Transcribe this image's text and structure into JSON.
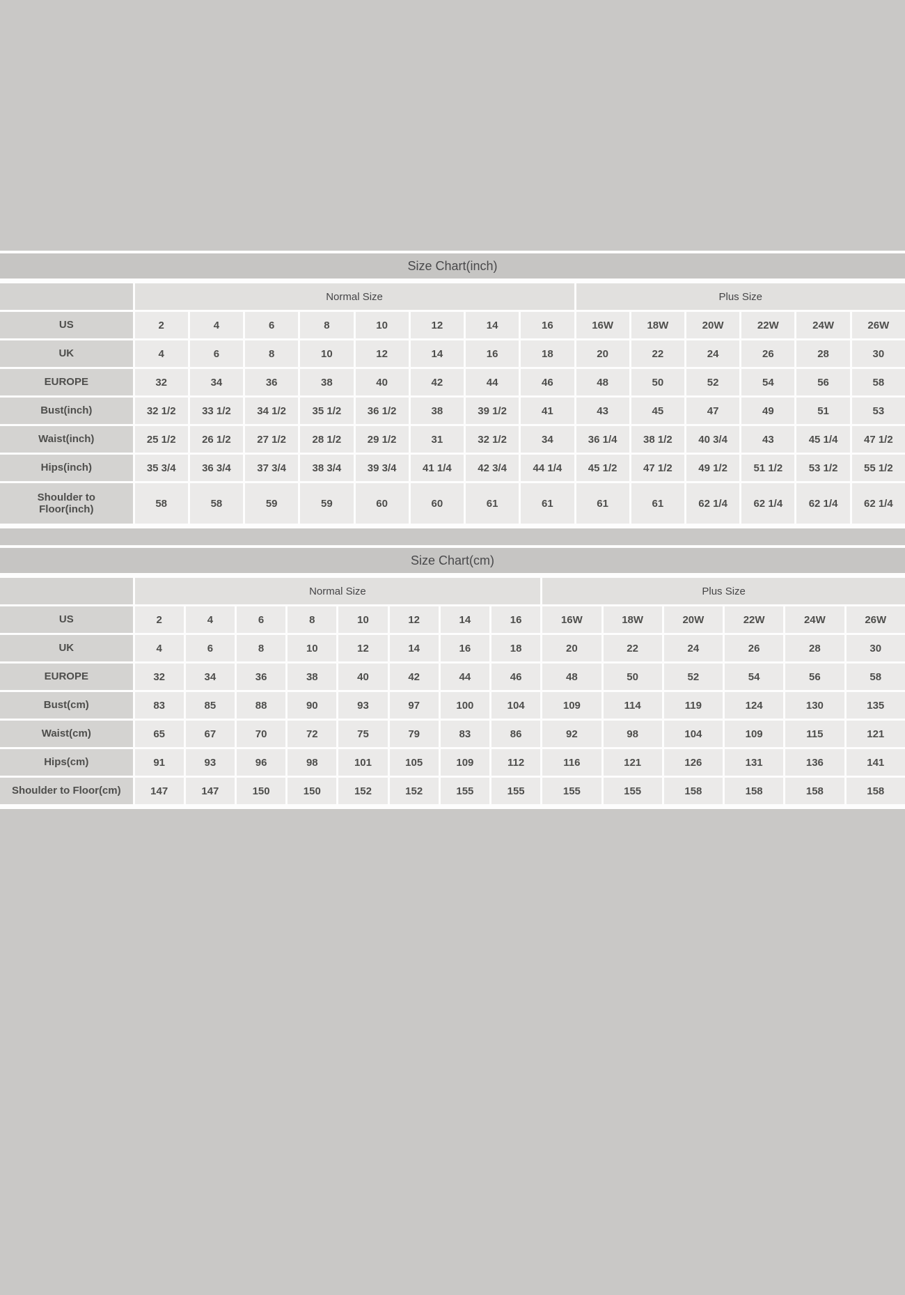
{
  "colors": {
    "page_background": "#c9c8c6",
    "title_bar": "#c6c5c3",
    "label_cell": "#d4d3d1",
    "group_header_cell": "#e1e0de",
    "data_cell": "#ebeae9",
    "grid_line": "#fdfdfd",
    "text": "#4e4e4c"
  },
  "chart_data": [
    {
      "type": "table",
      "title": "Size Chart(inch)",
      "group_headers": [
        {
          "label": "Normal Size",
          "span": 8
        },
        {
          "label": "Plus Size",
          "span": 6
        }
      ],
      "rows": [
        {
          "label": "US",
          "values": [
            "2",
            "4",
            "6",
            "8",
            "10",
            "12",
            "14",
            "16",
            "16W",
            "18W",
            "20W",
            "22W",
            "24W",
            "26W"
          ]
        },
        {
          "label": "UK",
          "values": [
            "4",
            "6",
            "8",
            "10",
            "12",
            "14",
            "16",
            "18",
            "20",
            "22",
            "24",
            "26",
            "28",
            "30"
          ]
        },
        {
          "label": "EUROPE",
          "values": [
            "32",
            "34",
            "36",
            "38",
            "40",
            "42",
            "44",
            "46",
            "48",
            "50",
            "52",
            "54",
            "56",
            "58"
          ]
        },
        {
          "label": "Bust(inch)",
          "values": [
            "32 1/2",
            "33 1/2",
            "34 1/2",
            "35 1/2",
            "36 1/2",
            "38",
            "39 1/2",
            "41",
            "43",
            "45",
            "47",
            "49",
            "51",
            "53"
          ]
        },
        {
          "label": "Waist(inch)",
          "values": [
            "25 1/2",
            "26 1/2",
            "27 1/2",
            "28 1/2",
            "29 1/2",
            "31",
            "32 1/2",
            "34",
            "36 1/4",
            "38 1/2",
            "40 3/4",
            "43",
            "45 1/4",
            "47 1/2"
          ]
        },
        {
          "label": "Hips(inch)",
          "values": [
            "35 3/4",
            "36 3/4",
            "37 3/4",
            "38 3/4",
            "39 3/4",
            "41 1/4",
            "42 3/4",
            "44 1/4",
            "45 1/2",
            "47 1/2",
            "49 1/2",
            "51 1/2",
            "53 1/2",
            "55 1/2"
          ]
        },
        {
          "label": "Shoulder to Floor(inch)",
          "values": [
            "58",
            "58",
            "59",
            "59",
            "60",
            "60",
            "61",
            "61",
            "61",
            "61",
            "62 1/4",
            "62 1/4",
            "62 1/4",
            "62 1/4"
          ]
        }
      ]
    },
    {
      "type": "table",
      "title": "Size Chart(cm)",
      "group_headers": [
        {
          "label": "Normal Size",
          "span": 8
        },
        {
          "label": "Plus Size",
          "span": 6
        }
      ],
      "rows": [
        {
          "label": "US",
          "values": [
            "2",
            "4",
            "6",
            "8",
            "10",
            "12",
            "14",
            "16",
            "16W",
            "18W",
            "20W",
            "22W",
            "24W",
            "26W"
          ]
        },
        {
          "label": "UK",
          "values": [
            "4",
            "6",
            "8",
            "10",
            "12",
            "14",
            "16",
            "18",
            "20",
            "22",
            "24",
            "26",
            "28",
            "30"
          ]
        },
        {
          "label": "EUROPE",
          "values": [
            "32",
            "34",
            "36",
            "38",
            "40",
            "42",
            "44",
            "46",
            "48",
            "50",
            "52",
            "54",
            "56",
            "58"
          ]
        },
        {
          "label": "Bust(cm)",
          "values": [
            "83",
            "85",
            "88",
            "90",
            "93",
            "97",
            "100",
            "104",
            "109",
            "114",
            "119",
            "124",
            "130",
            "135"
          ]
        },
        {
          "label": "Waist(cm)",
          "values": [
            "65",
            "67",
            "70",
            "72",
            "75",
            "79",
            "83",
            "86",
            "92",
            "98",
            "104",
            "109",
            "115",
            "121"
          ]
        },
        {
          "label": "Hips(cm)",
          "values": [
            "91",
            "93",
            "96",
            "98",
            "101",
            "105",
            "109",
            "112",
            "116",
            "121",
            "126",
            "131",
            "136",
            "141"
          ]
        },
        {
          "label": "Shoulder to Floor(cm)",
          "values": [
            "147",
            "147",
            "150",
            "150",
            "152",
            "152",
            "155",
            "155",
            "155",
            "155",
            "158",
            "158",
            "158",
            "158"
          ]
        }
      ]
    }
  ]
}
